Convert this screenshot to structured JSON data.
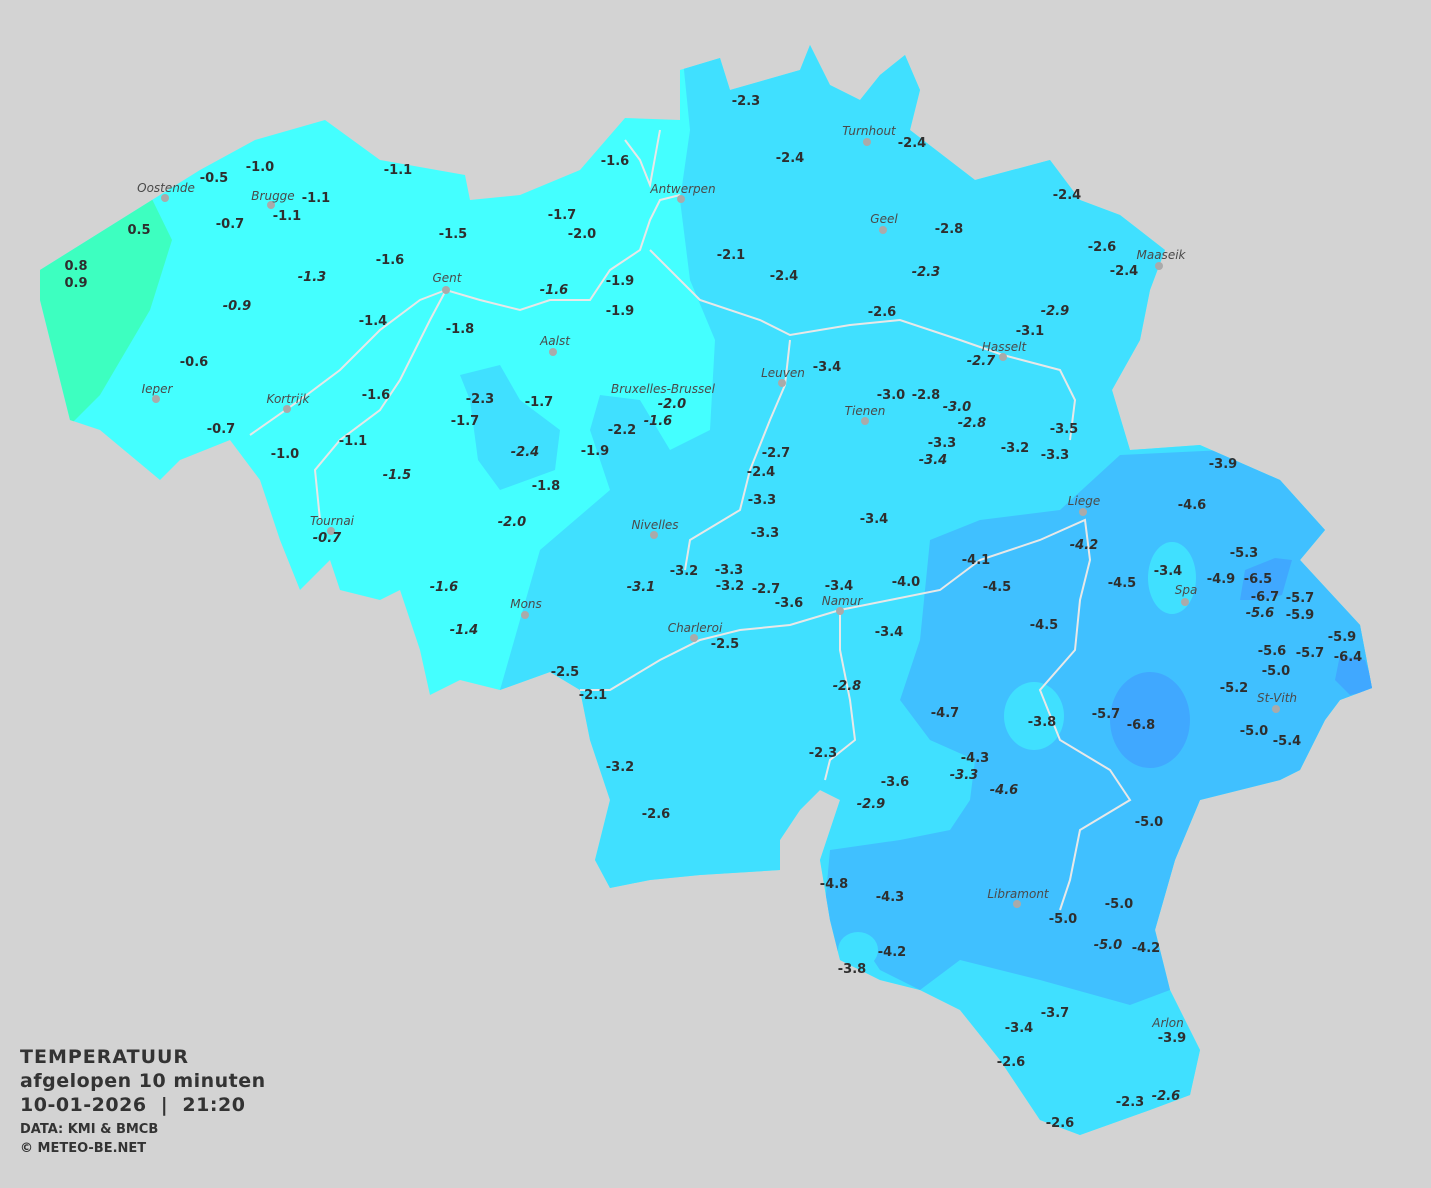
{
  "legend": {
    "title": "TEMPERATUUR",
    "subtitle": "afgelopen 10 minuten",
    "datetime": "10-01-2026  |  21:20",
    "source": "DATA: KMI & BMCB",
    "copyright": "© METEO-BE.NET"
  },
  "colors": {
    "background": "#d3d3d3",
    "zone_above_0": "#3dffc0",
    "zone_0_to_-2": "#44ffff",
    "zone_-2_to_-4": "#40e0ff",
    "zone_-4_to_-6": "#40c0ff",
    "zone_below_-6": "#40a8ff"
  },
  "cities": [
    {
      "name": "Oostende"
    },
    {
      "name": "Brugge"
    },
    {
      "name": "Antwerpen"
    },
    {
      "name": "Turnhout"
    },
    {
      "name": "Geel"
    },
    {
      "name": "Maaseik"
    },
    {
      "name": "Gent"
    },
    {
      "name": "Hasselt"
    },
    {
      "name": "Aalst"
    },
    {
      "name": "Leuven"
    },
    {
      "name": "Bruxelles-Brussel"
    },
    {
      "name": "Tienen"
    },
    {
      "name": "Ieper"
    },
    {
      "name": "Kortrijk"
    },
    {
      "name": "Liege"
    },
    {
      "name": "Tournai"
    },
    {
      "name": "Nivelles"
    },
    {
      "name": "Spa"
    },
    {
      "name": "Namur"
    },
    {
      "name": "Mons"
    },
    {
      "name": "Charleroi"
    },
    {
      "name": "St-Vith"
    },
    {
      "name": "Libramont"
    },
    {
      "name": "Arlon"
    }
  ],
  "stations": [
    {
      "value": "-2.3",
      "italic": false
    },
    {
      "value": "-2.4",
      "italic": false
    },
    {
      "value": "-2.4",
      "italic": false
    },
    {
      "value": "-1.6",
      "italic": false
    },
    {
      "value": "-1.0",
      "italic": false
    },
    {
      "value": "-0.5",
      "italic": false
    },
    {
      "value": "-1.1",
      "italic": false
    },
    {
      "value": "-1.1",
      "italic": false
    },
    {
      "value": "-1.1",
      "italic": false
    },
    {
      "value": "-0.7",
      "italic": false
    },
    {
      "value": "0.5",
      "italic": false
    },
    {
      "value": "0.8",
      "italic": false
    },
    {
      "value": "0.9",
      "italic": false
    },
    {
      "value": "-1.7",
      "italic": false
    },
    {
      "value": "-2.0",
      "italic": false
    },
    {
      "value": "-1.5",
      "italic": false
    },
    {
      "value": "-1.6",
      "italic": false
    },
    {
      "value": "-1.3",
      "italic": true
    },
    {
      "value": "-0.9",
      "italic": true
    },
    {
      "value": "-1.4",
      "italic": false
    },
    {
      "value": "-1.8",
      "italic": false
    },
    {
      "value": "-1.6",
      "italic": true
    },
    {
      "value": "-1.9",
      "italic": false
    },
    {
      "value": "-1.9",
      "italic": false
    },
    {
      "value": "-2.1",
      "italic": false
    },
    {
      "value": "-2.4",
      "italic": false
    },
    {
      "value": "-2.8",
      "italic": false
    },
    {
      "value": "-2.3",
      "italic": true
    },
    {
      "value": "-2.4",
      "italic": false
    },
    {
      "value": "-2.6",
      "italic": false
    },
    {
      "value": "-2.4",
      "italic": false
    },
    {
      "value": "-2.6",
      "italic": false
    },
    {
      "value": "-2.9",
      "italic": true
    },
    {
      "value": "-3.1",
      "italic": false
    },
    {
      "value": "-2.7",
      "italic": true
    },
    {
      "value": "-3.4",
      "italic": false
    },
    {
      "value": "-3.0",
      "italic": false
    },
    {
      "value": "-2.8",
      "italic": false
    },
    {
      "value": "-3.0",
      "italic": true
    },
    {
      "value": "-2.8",
      "italic": true
    },
    {
      "value": "-0.6",
      "italic": false
    },
    {
      "value": "-1.6",
      "italic": false
    },
    {
      "value": "-2.3",
      "italic": false
    },
    {
      "value": "-1.7",
      "italic": false
    },
    {
      "value": "-1.7",
      "italic": false
    },
    {
      "value": "-2.0",
      "italic": true
    },
    {
      "value": "-1.6",
      "italic": true
    },
    {
      "value": "-2.2",
      "italic": false
    },
    {
      "value": "-0.7",
      "italic": false
    },
    {
      "value": "-1.1",
      "italic": false
    },
    {
      "value": "-1.0",
      "italic": false
    },
    {
      "value": "-2.4",
      "italic": true
    },
    {
      "value": "-1.9",
      "italic": false
    },
    {
      "value": "-2.7",
      "italic": false
    },
    {
      "value": "-3.3",
      "italic": false
    },
    {
      "value": "-3.4",
      "italic": true
    },
    {
      "value": "-3.2",
      "italic": false
    },
    {
      "value": "-3.5",
      "italic": false
    },
    {
      "value": "-3.3",
      "italic": false
    },
    {
      "value": "-3.9",
      "italic": false
    },
    {
      "value": "-2.4",
      "italic": false
    },
    {
      "value": "-1.5",
      "italic": true
    },
    {
      "value": "-1.8",
      "italic": false
    },
    {
      "value": "-3.3",
      "italic": false
    },
    {
      "value": "-4.6",
      "italic": false
    },
    {
      "value": "-2.0",
      "italic": true
    },
    {
      "value": "-3.3",
      "italic": false
    },
    {
      "value": "-3.4",
      "italic": false
    },
    {
      "value": "-0.7",
      "italic": true
    },
    {
      "value": "-4.2",
      "italic": true
    },
    {
      "value": "-5.3",
      "italic": false
    },
    {
      "value": "-4.1",
      "italic": false
    },
    {
      "value": "-3.2",
      "italic": false
    },
    {
      "value": "-3.3",
      "italic": false
    },
    {
      "value": "-4.5",
      "italic": false
    },
    {
      "value": "-4.5",
      "italic": false
    },
    {
      "value": "-3.4",
      "italic": false
    },
    {
      "value": "-4.9",
      "italic": false
    },
    {
      "value": "-6.5",
      "italic": false
    },
    {
      "value": "-6.7",
      "italic": false
    },
    {
      "value": "-5.7",
      "italic": false
    },
    {
      "value": "-5.6",
      "italic": true
    },
    {
      "value": "-5.9",
      "italic": false
    },
    {
      "value": "-1.6",
      "italic": true
    },
    {
      "value": "-3.1",
      "italic": true
    },
    {
      "value": "-3.2",
      "italic": false
    },
    {
      "value": "-2.7",
      "italic": false
    },
    {
      "value": "-3.4",
      "italic": false
    },
    {
      "value": "-4.0",
      "italic": false
    },
    {
      "value": "-3.6",
      "italic": false
    },
    {
      "value": "-1.4",
      "italic": true
    },
    {
      "value": "-3.4",
      "italic": false
    },
    {
      "value": "-4.5",
      "italic": false
    },
    {
      "value": "-2.5",
      "italic": false
    },
    {
      "value": "-5.9",
      "italic": false
    },
    {
      "value": "-5.7",
      "italic": false
    },
    {
      "value": "-6.4",
      "italic": false
    },
    {
      "value": "-5.6",
      "italic": false
    },
    {
      "value": "-5.0",
      "italic": false
    },
    {
      "value": "-2.5",
      "italic": false
    },
    {
      "value": "-2.8",
      "italic": true
    },
    {
      "value": "-5.2",
      "italic": false
    },
    {
      "value": "-2.1",
      "italic": false
    },
    {
      "value": "-4.7",
      "italic": false
    },
    {
      "value": "-3.8",
      "italic": false
    },
    {
      "value": "-5.7",
      "italic": false
    },
    {
      "value": "-6.8",
      "italic": false
    },
    {
      "value": "-5.0",
      "italic": false
    },
    {
      "value": "-5.4",
      "italic": false
    },
    {
      "value": "-2.3",
      "italic": false
    },
    {
      "value": "-4.3",
      "italic": false
    },
    {
      "value": "-3.3",
      "italic": true
    },
    {
      "value": "-3.2",
      "italic": false
    },
    {
      "value": "-3.6",
      "italic": false
    },
    {
      "value": "-4.6",
      "italic": true
    },
    {
      "value": "-2.9",
      "italic": true
    },
    {
      "value": "-2.6",
      "italic": false
    },
    {
      "value": "-5.0",
      "italic": false
    },
    {
      "value": "-4.8",
      "italic": false
    },
    {
      "value": "-4.3",
      "italic": false
    },
    {
      "value": "-5.0",
      "italic": false
    },
    {
      "value": "-5.0",
      "italic": false
    },
    {
      "value": "-5.0",
      "italic": true
    },
    {
      "value": "-4.2",
      "italic": false
    },
    {
      "value": "-4.2",
      "italic": false
    },
    {
      "value": "-3.8",
      "italic": false
    },
    {
      "value": "-3.7",
      "italic": false
    },
    {
      "value": "-3.4",
      "italic": false
    },
    {
      "value": "-3.9",
      "italic": false
    },
    {
      "value": "-2.6",
      "italic": false
    },
    {
      "value": "-2.3",
      "italic": false
    },
    {
      "value": "-2.6",
      "italic": true
    },
    {
      "value": "-2.6",
      "italic": false
    }
  ]
}
